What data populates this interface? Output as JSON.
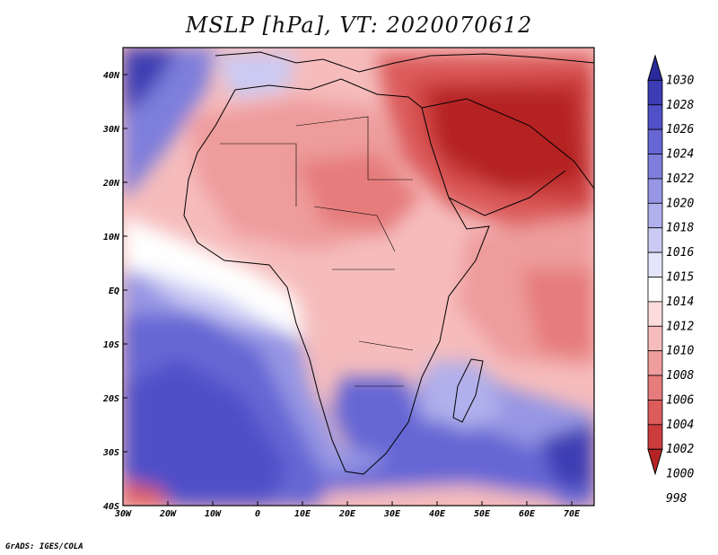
{
  "title": "MSLP [hPa], VT: 2020070612",
  "credit": "GrADS: IGES/COLA",
  "map": {
    "lon_range": [
      -30,
      75
    ],
    "lat_range": [
      -40,
      45
    ],
    "x_ticks": [
      {
        "lon": -30,
        "label": "30W"
      },
      {
        "lon": -20,
        "label": "20W"
      },
      {
        "lon": -10,
        "label": "10W"
      },
      {
        "lon": 0,
        "label": "0"
      },
      {
        "lon": 10,
        "label": "10E"
      },
      {
        "lon": 20,
        "label": "20E"
      },
      {
        "lon": 30,
        "label": "30E"
      },
      {
        "lon": 40,
        "label": "40E"
      },
      {
        "lon": 50,
        "label": "50E"
      },
      {
        "lon": 60,
        "label": "60E"
      },
      {
        "lon": 70,
        "label": "70E"
      }
    ],
    "y_ticks": [
      {
        "lat": 40,
        "label": "40N"
      },
      {
        "lat": 30,
        "label": "30N"
      },
      {
        "lat": 20,
        "label": "20N"
      },
      {
        "lat": 10,
        "label": "10N"
      },
      {
        "lat": 0,
        "label": "EQ"
      },
      {
        "lat": -10,
        "label": "10S"
      },
      {
        "lat": -20,
        "label": "20S"
      },
      {
        "lat": -30,
        "label": "30S"
      },
      {
        "lat": -40,
        "label": "40S"
      }
    ]
  },
  "colorbar": {
    "levels": [
      "1030",
      "1028",
      "1026",
      "1024",
      "1022",
      "1020",
      "1018",
      "1016",
      "1015",
      "1014",
      "1012",
      "1010",
      "1008",
      "1006",
      "1004",
      "1002",
      "1000",
      "998"
    ],
    "colors": [
      "#2a2a9c",
      "#3c3cb4",
      "#5050c8",
      "#6666d4",
      "#7e7edc",
      "#9696e4",
      "#b0b0ec",
      "#cacaf4",
      "#e4e4fa",
      "#ffffff",
      "#fcdcdc",
      "#f6bcbc",
      "#ee9c9c",
      "#e67c7c",
      "#dc5c5c",
      "#cc3c3c",
      "#b42424"
    ]
  }
}
